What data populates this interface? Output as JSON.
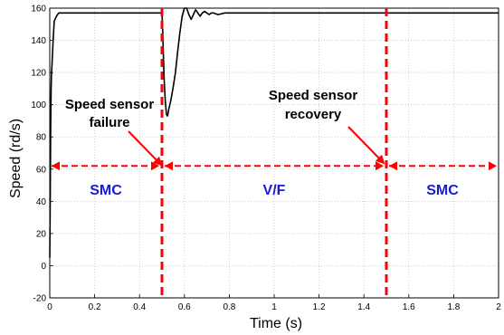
{
  "chart_data": {
    "type": "line",
    "xlabel": "Time (s)",
    "ylabel": "Speed (rd/s)",
    "xlim": [
      0,
      2
    ],
    "ylim": [
      -20,
      160
    ],
    "x_ticks": [
      0,
      0.2,
      0.4,
      0.6,
      0.8,
      1,
      1.2,
      1.4,
      1.6,
      1.8,
      2
    ],
    "y_ticks": [
      -20,
      0,
      20,
      40,
      60,
      80,
      100,
      120,
      140,
      160
    ],
    "grid": true,
    "series": [
      {
        "color": "#000000",
        "x": [
          0,
          0.002,
          0.004,
          0.006,
          0.008,
          0.01,
          0.015,
          0.02,
          0.03,
          0.04,
          0.05,
          0.5,
          0.503,
          0.506,
          0.51,
          0.515,
          0.52,
          0.525,
          0.53,
          0.54,
          0.55,
          0.56,
          0.57,
          0.58,
          0.59,
          0.6,
          0.61,
          0.62,
          0.63,
          0.64,
          0.65,
          0.66,
          0.67,
          0.68,
          0.69,
          0.7,
          0.71,
          0.72,
          0.73,
          0.75,
          0.78,
          0.8,
          0.83,
          2.0
        ],
        "y": [
          5,
          40,
          85,
          110,
          120,
          125,
          140,
          152,
          155,
          157,
          157,
          157,
          148,
          132,
          115,
          102,
          94,
          93,
          97,
          103,
          111,
          120,
          133,
          145,
          155,
          160,
          160,
          156,
          153,
          156,
          159,
          157,
          155,
          157,
          158,
          157,
          156,
          157,
          157,
          156,
          157,
          157,
          157,
          157
        ]
      }
    ],
    "events": [
      {
        "x": 0.5,
        "label": "Speed sensor failure",
        "color": "#ff0000"
      },
      {
        "x": 1.5,
        "label": "Speed sensor recovery",
        "color": "#ff0000"
      }
    ],
    "arrow_y": 62,
    "modes": [
      {
        "label": "SMC",
        "from": 0,
        "to": 0.5
      },
      {
        "label": "V/F",
        "from": 0.5,
        "to": 1.5
      },
      {
        "label": "SMC",
        "from": 1.5,
        "to": 2
      }
    ],
    "annotations": {
      "failure_line1": "Speed sensor",
      "failure_line2": "failure",
      "recovery_line1": "Speed sensor",
      "recovery_line2": "recovery"
    },
    "colors": {
      "line": "#000000",
      "marker": "#ff0000",
      "mode_text": "#1a1ad0"
    }
  }
}
